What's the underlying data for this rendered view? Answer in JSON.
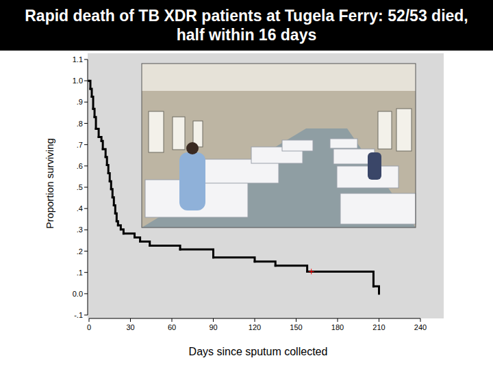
{
  "chart_data": {
    "type": "line",
    "title": "Rapid death of TB XDR patients at Tugela Ferry: 52/53 died, half within 16 days",
    "x_label": "Days since sputum collected",
    "y_label": "Proportion surviving",
    "xlim": [
      0,
      240
    ],
    "ylim": [
      -0.1,
      1.1
    ],
    "xticks": [
      0,
      30,
      60,
      90,
      120,
      150,
      180,
      210,
      240
    ],
    "yticks": [
      1.1,
      {
        "value": 1,
        "label": "1.0"
      },
      {
        "value": 0.9,
        "label": ".9"
      },
      {
        "value": 0.8,
        "label": ".8"
      },
      {
        "value": 0.7,
        "label": ".7"
      },
      {
        "value": 0.6,
        "label": ".6"
      },
      {
        "value": 0.5,
        "label": ".5"
      },
      {
        "value": 0.4,
        "label": ".4"
      },
      {
        "value": 0.3,
        "label": ".3"
      },
      {
        "value": 0.2,
        "label": ".2"
      },
      {
        "value": 0.1,
        "label": ".1"
      },
      {
        "value": 0,
        "label": "0.0"
      },
      {
        "value": -0.1,
        "label": "-.1"
      }
    ],
    "series": [
      {
        "color": "#000000",
        "line_style": "step",
        "x": [
          0,
          1,
          2,
          3,
          4,
          5,
          7,
          9,
          10,
          12,
          13,
          14,
          15,
          16,
          17,
          18,
          19,
          20,
          21,
          23,
          25,
          33,
          37,
          44,
          66,
          90,
          120,
          135,
          158,
          206,
          210
        ],
        "values": [
          1.0,
          0.962,
          0.925,
          0.868,
          0.83,
          0.774,
          0.736,
          0.717,
          0.679,
          0.642,
          0.604,
          0.566,
          0.528,
          0.491,
          0.453,
          0.415,
          0.377,
          0.34,
          0.321,
          0.302,
          0.283,
          0.264,
          0.245,
          0.226,
          0.208,
          0.17,
          0.151,
          0.132,
          0.104,
          0.035,
          0.0
        ]
      },
      {
        "type": "scatter",
        "marker": "plus",
        "color": "#ff0000",
        "x": [
          161
        ],
        "values": [
          0.104
        ]
      }
    ]
  }
}
